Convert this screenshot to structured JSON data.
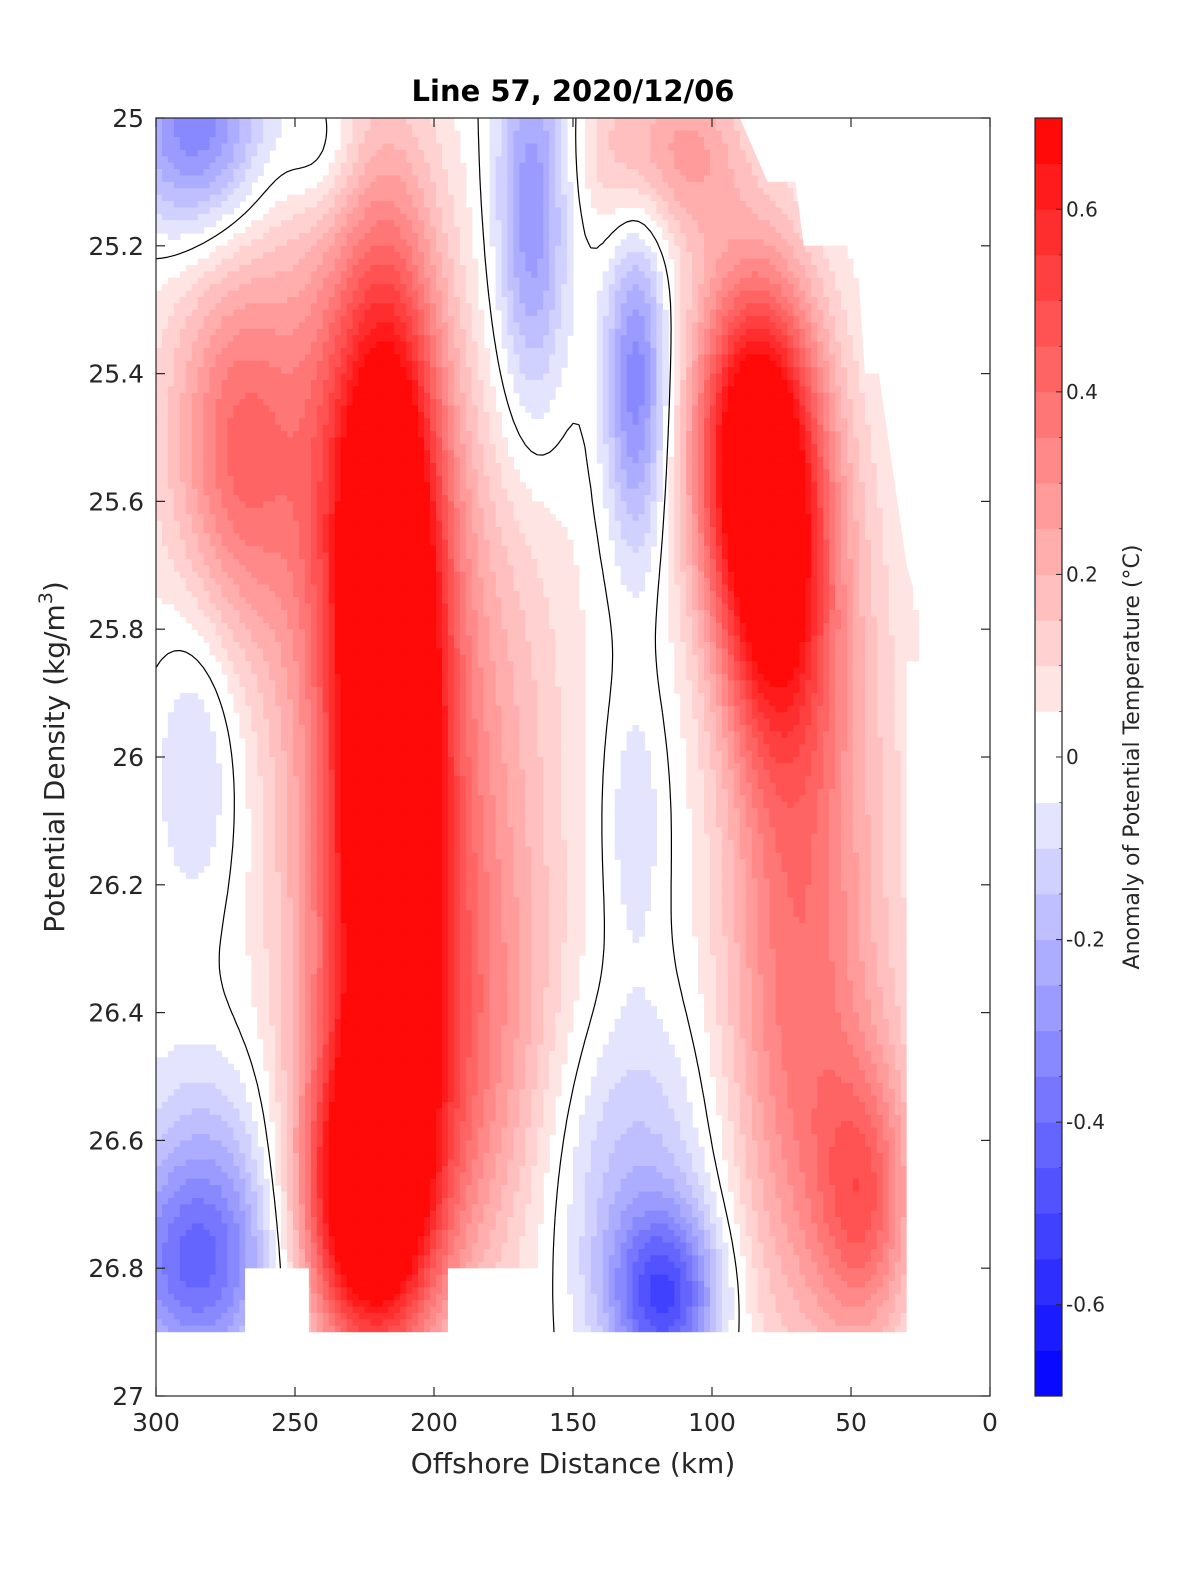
{
  "chart_data": {
    "type": "heatmap",
    "title": "Line 57, 2020/12/06",
    "xlabel": "Offshore Distance (km)",
    "ylabel_main": "Potential Density (kg/m",
    "ylabel_sup": "3",
    "ylabel_close": ")",
    "colorbar_label": "Anomaly of Potential Temperature (°C)",
    "xlim": [
      300,
      0
    ],
    "ylim": [
      25,
      27
    ],
    "x_reversed": true,
    "y_reversed": true,
    "x_ticks": [
      300,
      250,
      200,
      150,
      100,
      50,
      0
    ],
    "x_tick_labels": [
      "300",
      "250",
      "200",
      "150",
      "100",
      "50",
      "0"
    ],
    "y_ticks": [
      25,
      25.2,
      25.4,
      25.6,
      25.8,
      26,
      26.2,
      26.4,
      26.6,
      26.8,
      27
    ],
    "y_tick_labels": [
      "25",
      "25.2",
      "25.4",
      "25.6",
      "25.8",
      "26",
      "26.2",
      "26.4",
      "26.6",
      "26.8",
      "27"
    ],
    "colorbar_range": [
      -0.7,
      0.7
    ],
    "colorbar_step": 0.05,
    "colorbar_ticks": [
      -0.6,
      -0.4,
      -0.2,
      0,
      0.2,
      0.4,
      0.6
    ],
    "colorbar_tick_labels": [
      "-0.6",
      "-0.4",
      "-0.2",
      "0",
      "0.2",
      "0.4",
      "0.6"
    ],
    "colormap": {
      "negative": "#0000ff",
      "zero": "#ffffff",
      "positive": "#ff0000"
    },
    "zero_contour_color": "#000000",
    "grid": false,
    "coverage": {
      "density_bottom_by_distance": [
        {
          "x_range": [
            300,
            268
          ],
          "bottom": 26.9
        },
        {
          "x_range": [
            268,
            245
          ],
          "bottom": 26.8
        },
        {
          "x_range": [
            245,
            195
          ],
          "bottom": 26.9
        },
        {
          "x_range": [
            195,
            160
          ],
          "bottom": 26.8
        },
        {
          "x_range": [
            160,
            35
          ],
          "bottom": 26.9
        }
      ],
      "density_top_by_distance": [
        {
          "x": 90,
          "top": 25.0
        },
        {
          "x": 80,
          "top": 25.1
        },
        {
          "x": 70,
          "top": 25.1
        },
        {
          "x": 67,
          "top": 25.2
        },
        {
          "x": 48,
          "top": 25.2
        },
        {
          "x": 45,
          "top": 25.4
        },
        {
          "x": 40,
          "top": 25.4
        },
        {
          "x": 30,
          "top": 25.7
        },
        {
          "x": 20,
          "top": 25.85
        },
        {
          "x": 30,
          "top": 25.85
        },
        {
          "x": 30,
          "top": 26.9
        }
      ]
    },
    "features": [
      {
        "kind": "blob",
        "x": 225,
        "y": 26.7,
        "sx": 16,
        "sy": 0.16,
        "value": 0.62
      },
      {
        "kind": "blob",
        "x": 215,
        "y": 25.95,
        "sx": 13,
        "sy": 0.45,
        "value": 0.62
      },
      {
        "kind": "blob",
        "x": 220,
        "y": 26.3,
        "sx": 22,
        "sy": 0.4,
        "value": 0.45
      },
      {
        "kind": "blob",
        "x": 222,
        "y": 25.55,
        "sx": 18,
        "sy": 0.3,
        "value": 0.38
      },
      {
        "kind": "blob",
        "x": 270,
        "y": 25.52,
        "sx": 16,
        "sy": 0.2,
        "value": 0.3
      },
      {
        "kind": "blob",
        "x": 255,
        "y": 25.5,
        "sx": 40,
        "sy": 0.4,
        "value": 0.12
      },
      {
        "kind": "blob",
        "x": 185,
        "y": 26.55,
        "sx": 25,
        "sy": 0.25,
        "value": 0.2
      },
      {
        "kind": "blob",
        "x": 180,
        "y": 26.15,
        "sx": 20,
        "sy": 0.3,
        "value": 0.15
      },
      {
        "kind": "blob",
        "x": 180,
        "y": 25.75,
        "sx": 25,
        "sy": 0.25,
        "value": 0.08
      },
      {
        "kind": "blob",
        "x": 85,
        "y": 25.5,
        "sx": 16,
        "sy": 0.2,
        "value": 0.7
      },
      {
        "kind": "blob",
        "x": 78,
        "y": 25.75,
        "sx": 14,
        "sy": 0.2,
        "value": 0.4
      },
      {
        "kind": "blob",
        "x": 72,
        "y": 26.2,
        "sx": 18,
        "sy": 0.4,
        "value": 0.25
      },
      {
        "kind": "blob",
        "x": 45,
        "y": 26.7,
        "sx": 12,
        "sy": 0.15,
        "value": 0.3
      },
      {
        "kind": "blob",
        "x": 60,
        "y": 26.6,
        "sx": 25,
        "sy": 0.3,
        "value": 0.18
      },
      {
        "kind": "blob",
        "x": 55,
        "y": 25.9,
        "sx": 20,
        "sy": 0.35,
        "value": 0.12
      },
      {
        "kind": "blob",
        "x": 110,
        "y": 25.05,
        "sx": 15,
        "sy": 0.1,
        "value": 0.25
      },
      {
        "kind": "blob",
        "x": 135,
        "y": 25.05,
        "sx": 10,
        "sy": 0.1,
        "value": 0.12
      },
      {
        "kind": "blob",
        "x": 285,
        "y": 25.02,
        "sx": 18,
        "sy": 0.12,
        "value": -0.38
      },
      {
        "kind": "blob",
        "x": 285,
        "y": 26.8,
        "sx": 20,
        "sy": 0.12,
        "value": -0.4
      },
      {
        "kind": "blob",
        "x": 280,
        "y": 26.6,
        "sx": 20,
        "sy": 0.12,
        "value": -0.12
      },
      {
        "kind": "blob",
        "x": 285,
        "y": 25.98,
        "sx": 12,
        "sy": 0.18,
        "value": -0.15
      },
      {
        "kind": "blob",
        "x": 165,
        "y": 25.15,
        "sx": 9,
        "sy": 0.22,
        "value": -0.3
      },
      {
        "kind": "blob",
        "x": 127,
        "y": 25.42,
        "sx": 8,
        "sy": 0.18,
        "value": -0.35
      },
      {
        "kind": "blob",
        "x": 117,
        "y": 26.85,
        "sx": 14,
        "sy": 0.1,
        "value": -0.45
      },
      {
        "kind": "blob",
        "x": 130,
        "y": 26.65,
        "sx": 25,
        "sy": 0.18,
        "value": -0.18
      },
      {
        "kind": "blob",
        "x": 128,
        "y": 26.1,
        "sx": 8,
        "sy": 0.15,
        "value": -0.1
      },
      {
        "kind": "blob",
        "x": 240,
        "y": 25.05,
        "sx": 10,
        "sy": 0.08,
        "value": -0.12
      }
    ]
  }
}
